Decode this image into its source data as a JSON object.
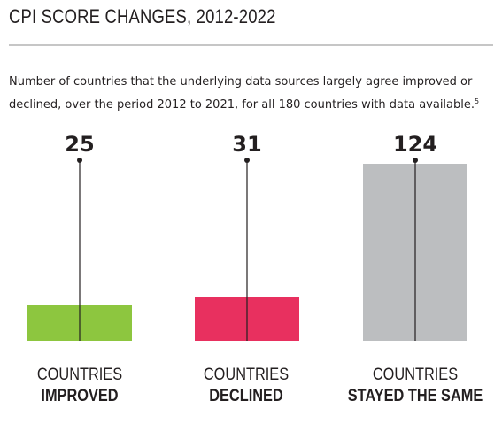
{
  "header": {
    "title": "CPI SCORE CHANGES, 2012-2022",
    "subtitle": "Number of countries that the underlying data sources largely agree improved or declined, over the period 2012 to 2021, for all 180 countries with data available.",
    "footnote": "5"
  },
  "chart_data": {
    "type": "bar",
    "title": "CPI SCORE CHANGES, 2012-2022",
    "categories": [
      "COUNTRIES IMPROVED",
      "COUNTRIES DECLINED",
      "COUNTRIES STAYED THE SAME"
    ],
    "category_lines": [
      [
        "COUNTRIES",
        "IMPROVED"
      ],
      [
        "COUNTRIES",
        "DECLINED"
      ],
      [
        "COUNTRIES",
        "STAYED THE SAME"
      ]
    ],
    "values": [
      25,
      31,
      124
    ],
    "ylim": [
      0,
      124
    ],
    "colors": [
      "#8dc63f",
      "#e8305f",
      "#bcbec0"
    ],
    "grid": false,
    "legend": "none"
  }
}
